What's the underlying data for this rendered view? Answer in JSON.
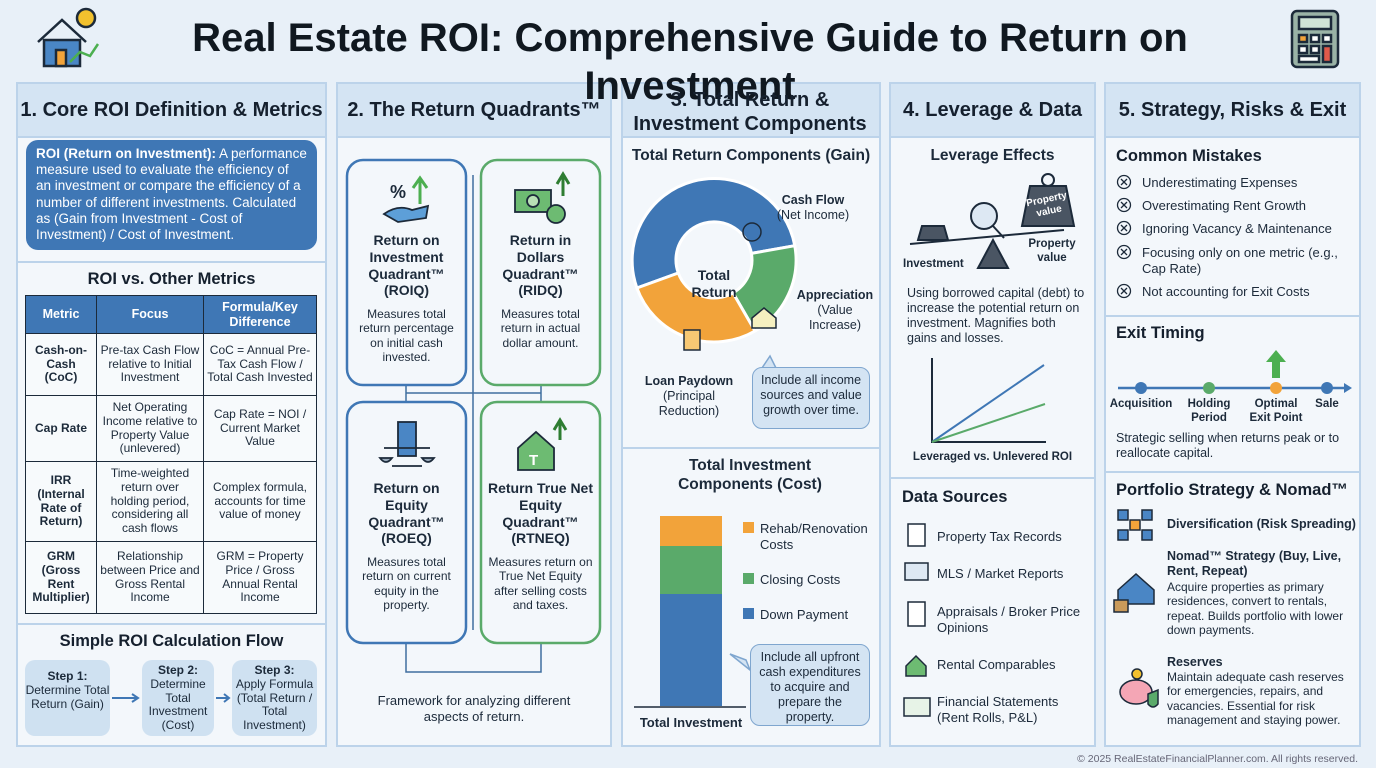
{
  "header": {
    "title": "Real Estate ROI: Comprehensive Guide to Return on Investment"
  },
  "core": {
    "heading": "1. Core ROI Definition & Metrics",
    "definition_term": "ROI (Return on Investment):",
    "definition": "A performance measure used to evaluate the efficiency of an investment or compare the efficiency of a number of different investments. Calculated as (Gain from Investment - Cost of Investment) / Cost of Investment.",
    "table_title": "ROI vs. Other Metrics",
    "table": {
      "header": [
        "Metric",
        "Focus",
        "Formula/Key Difference"
      ],
      "rows": [
        [
          "Cash-on-Cash (CoC)",
          "Pre-tax Cash Flow relative to Initial Investment",
          "CoC = Annual Pre-Tax Cash Flow / Total Cash Invested"
        ],
        [
          "Cap Rate",
          "Net Operating Income relative to Property Value (unlevered)",
          "Cap Rate = NOI / Current Market Value"
        ],
        [
          "IRR (Internal Rate of Return)",
          "Time-weighted return over holding period, considering all cash flows",
          "Complex formula, accounts for time value of money"
        ],
        [
          "GRM (Gross Rent Multiplier)",
          "Relationship between Price and Gross Rental Income",
          "GRM = Property Price / Gross Annual Rental Income"
        ]
      ]
    },
    "flow_title": "Simple ROI Calculation Flow",
    "steps": [
      {
        "label": "Step 1:",
        "text": "Determine Total Return (Gain)"
      },
      {
        "label": "Step 2:",
        "text": "Determine Total Investment (Cost)"
      },
      {
        "label": "Step 3:",
        "text": "Apply Formula (Total Return / Total Investment)"
      }
    ]
  },
  "quadrants": {
    "heading": "2. The Return Quadrants™",
    "items": [
      {
        "title": "Return on Investment Quadrant™ (ROIQ)",
        "text": "Measures total return percentage on initial cash invested."
      },
      {
        "title": "Return in Dollars Quadrant™ (RIDQ)",
        "text": "Measures total return in actual dollar amount."
      },
      {
        "title": "Return on Equity Quadrant™ (ROEQ)",
        "text": "Measures total return on current equity in the property."
      },
      {
        "title": "Return True Net Equity Quadrant™ (RTNEQ)",
        "text": "Measures return on True Net Equity after selling costs and taxes."
      }
    ],
    "caption": "Framework for analyzing different aspects of return."
  },
  "components": {
    "heading": "3. Total Return & Investment Components",
    "gain_title": "Total Return Components (Gain)",
    "donut_center": "Total Return",
    "gain_labels": [
      {
        "name": "Cash Flow",
        "detail": "(Net Income)"
      },
      {
        "name": "Appreciation",
        "detail": "(Value Increase)"
      },
      {
        "name": "Loan Paydown",
        "detail": "(Principal Reduction)"
      }
    ],
    "gain_note": "Include all income sources and value growth over time.",
    "cost_title": "Total Investment Components (Cost)",
    "cost_legend": [
      "Rehab/Renovation Costs",
      "Closing Costs",
      "Down Payment"
    ],
    "cost_axis": "Total Investment",
    "cost_note": "Include all upfront cash expenditures to acquire and prepare the property."
  },
  "leverage": {
    "heading": "4. Leverage & Data",
    "leverage_title": "Leverage Effects",
    "weight_label": "Property value",
    "right_label": "Property value",
    "left_label": "Investment",
    "text": "Using borrowed capital (debt) to increase the potential return on investment. Magnifies both gains and losses.",
    "chart_caption": "Leveraged vs. Unlevered ROI",
    "data_title": "Data Sources",
    "sources": [
      "Property Tax Records",
      "MLS / Market Reports",
      "Appraisals / Broker Price Opinions",
      "Rental Comparables",
      "Financial Statements (Rent Rolls, P&L)"
    ]
  },
  "strategy": {
    "heading": "5. Strategy, Risks & Exit",
    "mistakes_title": "Common Mistakes",
    "mistakes": [
      "Underestimating Expenses",
      "Overestimating Rent Growth",
      "Ignoring Vacancy & Maintenance",
      "Focusing only on one metric (e.g., Cap Rate)",
      "Not accounting for Exit Costs"
    ],
    "exit_title": "Exit Timing",
    "timeline": [
      "Acquisition",
      "Holding Period",
      "Optimal Exit Point",
      "Sale"
    ],
    "exit_text": "Strategic selling when returns peak or to reallocate capital.",
    "portfolio_title": "Portfolio Strategy & Nomad™",
    "portfolio": [
      {
        "title": "Diversification (Risk Spreading)"
      },
      {
        "title": "Nomad™ Strategy (Buy, Live, Rent, Repeat)",
        "text": "Acquire properties as primary residences, convert to rentals, repeat. Builds portfolio with lower down payments."
      },
      {
        "title": "Reserves",
        "text": "Maintain adequate cash reserves for emergencies, repairs, and vacancies. Essential for risk management and staying power."
      }
    ]
  },
  "footer": "© 2025 RealEstateFinancialPlanner.com. All rights reserved."
}
